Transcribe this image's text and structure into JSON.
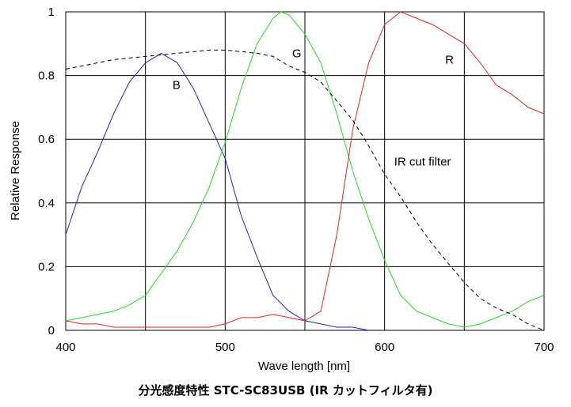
{
  "caption": "分光感度特性  STC-SC83USB (IR カットフィルタ有)",
  "chart_data": {
    "type": "line",
    "title": "分光感度特性  STC-SC83USB (IR カットフィルタ有)",
    "xlabel": "Wave length [nm]",
    "ylabel": "Relative Response",
    "xlim": [
      400,
      700
    ],
    "ylim": [
      0,
      1
    ],
    "x_ticks": [
      400,
      500,
      600,
      700
    ],
    "y_ticks": [
      0,
      0.2,
      0.4,
      0.6,
      0.8,
      1
    ],
    "y_tick_labels": [
      "0",
      "0.2",
      "0.4",
      "0.6",
      "0.8",
      "1"
    ],
    "grid": true,
    "legend": "none",
    "series": [
      {
        "name": "B",
        "color": "#2222cc",
        "dash": "solid",
        "x": [
          400,
          410,
          420,
          430,
          440,
          450,
          460,
          470,
          480,
          490,
          500,
          510,
          520,
          530,
          540,
          550,
          560,
          570,
          580,
          590
        ],
        "y": [
          0.3,
          0.45,
          0.56,
          0.68,
          0.78,
          0.84,
          0.87,
          0.84,
          0.76,
          0.65,
          0.54,
          0.36,
          0.23,
          0.11,
          0.06,
          0.03,
          0.02,
          0.01,
          0.01,
          0.0
        ]
      },
      {
        "name": "G",
        "color": "#22dd22",
        "dash": "solid",
        "x": [
          400,
          410,
          420,
          430,
          440,
          450,
          460,
          470,
          480,
          490,
          500,
          510,
          520,
          530,
          535,
          540,
          550,
          560,
          570,
          580,
          590,
          600,
          610,
          620,
          630,
          640,
          650,
          660,
          670,
          680,
          690,
          700
        ],
        "y": [
          0.03,
          0.04,
          0.05,
          0.06,
          0.08,
          0.11,
          0.18,
          0.25,
          0.34,
          0.45,
          0.59,
          0.76,
          0.9,
          0.98,
          1.0,
          0.99,
          0.93,
          0.84,
          0.68,
          0.5,
          0.35,
          0.22,
          0.11,
          0.06,
          0.04,
          0.02,
          0.01,
          0.02,
          0.04,
          0.06,
          0.09,
          0.11
        ]
      },
      {
        "name": "R",
        "color": "#ee2222",
        "dash": "solid",
        "x": [
          400,
          410,
          420,
          430,
          440,
          450,
          460,
          470,
          480,
          490,
          500,
          510,
          520,
          530,
          540,
          550,
          560,
          570,
          580,
          590,
          600,
          610,
          620,
          630,
          640,
          650,
          660,
          670,
          680,
          690,
          700
        ],
        "y": [
          0.03,
          0.02,
          0.02,
          0.01,
          0.01,
          0.01,
          0.01,
          0.01,
          0.01,
          0.01,
          0.02,
          0.04,
          0.04,
          0.05,
          0.04,
          0.03,
          0.06,
          0.3,
          0.63,
          0.84,
          0.96,
          1.0,
          0.98,
          0.96,
          0.93,
          0.9,
          0.84,
          0.77,
          0.74,
          0.7,
          0.68
        ]
      },
      {
        "name": "IR cut filter",
        "color": "#000000",
        "dash": "dashed",
        "x": [
          400,
          410,
          420,
          430,
          440,
          450,
          460,
          470,
          480,
          490,
          500,
          510,
          520,
          530,
          540,
          550,
          560,
          570,
          580,
          590,
          600,
          610,
          620,
          630,
          640,
          650,
          660,
          670,
          680,
          690,
          700
        ],
        "y": [
          0.82,
          0.83,
          0.84,
          0.85,
          0.855,
          0.86,
          0.865,
          0.87,
          0.875,
          0.88,
          0.88,
          0.875,
          0.87,
          0.86,
          0.83,
          0.81,
          0.78,
          0.72,
          0.66,
          0.58,
          0.49,
          0.42,
          0.34,
          0.27,
          0.21,
          0.15,
          0.1,
          0.07,
          0.05,
          0.02,
          0.0
        ]
      }
    ],
    "annotations": [
      {
        "text": "B",
        "x": 467,
        "y": 0.77
      },
      {
        "text": "G",
        "x": 542,
        "y": 0.87
      },
      {
        "text": "R",
        "x": 638,
        "y": 0.85
      },
      {
        "text": "IR cut filter",
        "x": 606,
        "y": 0.53
      }
    ]
  }
}
